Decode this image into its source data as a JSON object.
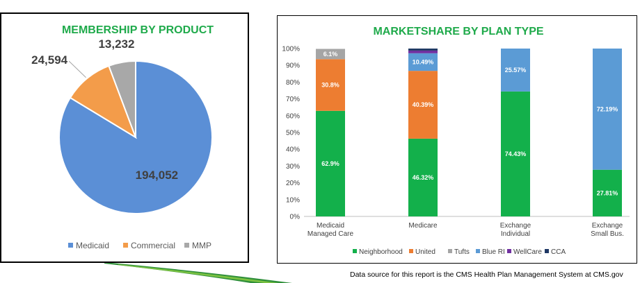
{
  "colors": {
    "title_green": "#1faa4b",
    "pie": [
      "#5b8fd6",
      "#f39c4a",
      "#a8a8a8"
    ],
    "Neighborhood": "#13b04b",
    "United": "#ed7d31",
    "Tufts": "#a5a5a5",
    "Blue RI": "#5b9bd5",
    "WellCare": "#7030a0",
    "CCA": "#1f3864"
  },
  "chart_data": [
    {
      "type": "pie",
      "title": "MEMBERSHIP BY PRODUCT",
      "labels": [
        "Medicaid",
        "Commercial",
        "MMP"
      ],
      "values": [
        194052,
        24594,
        13232
      ],
      "data_labels": [
        "194,052",
        "24,594",
        "13,232"
      ],
      "legend_position": "bottom"
    },
    {
      "type": "bar",
      "stacked": true,
      "title": "MARKETSHARE BY PLAN TYPE",
      "categories": [
        [
          "Medicaid",
          "Managed Care"
        ],
        [
          "Medicare"
        ],
        [
          "Exchange",
          "Individual"
        ],
        [
          "Exchange",
          "Small Bus."
        ]
      ],
      "series": [
        {
          "name": "Neighborhood",
          "values": [
            62.9,
            46.32,
            74.43,
            27.81
          ],
          "labels": [
            "62.9%",
            "46.32%",
            "74.43%",
            "27.81%"
          ]
        },
        {
          "name": "United",
          "values": [
            30.8,
            40.39,
            0,
            0
          ],
          "labels": [
            "30.8%",
            "40.39%",
            "",
            ""
          ]
        },
        {
          "name": "Tufts",
          "values": [
            6.1,
            0,
            0,
            0
          ],
          "labels": [
            "6.1%",
            "",
            "",
            ""
          ]
        },
        {
          "name": "Blue RI",
          "values": [
            0,
            10.49,
            25.57,
            72.19
          ],
          "labels": [
            "",
            "10.49%",
            "25.57%",
            "72.19%"
          ]
        },
        {
          "name": "WellCare",
          "values": [
            0,
            1.6,
            0,
            0
          ],
          "labels": [
            "",
            "",
            "",
            ""
          ]
        },
        {
          "name": "CCA",
          "values": [
            0,
            1.2,
            0,
            0
          ],
          "labels": [
            "",
            "",
            "",
            ""
          ]
        }
      ],
      "yticks": [
        "0%",
        "10%",
        "20%",
        "30%",
        "40%",
        "50%",
        "60%",
        "70%",
        "80%",
        "90%",
        "100%"
      ],
      "ylim": [
        0,
        100
      ],
      "grid": false,
      "legend_position": "bottom"
    }
  ],
  "footer": {
    "source_note": "Data source for this report is the CMS Health Plan Management System at CMS.gov"
  }
}
